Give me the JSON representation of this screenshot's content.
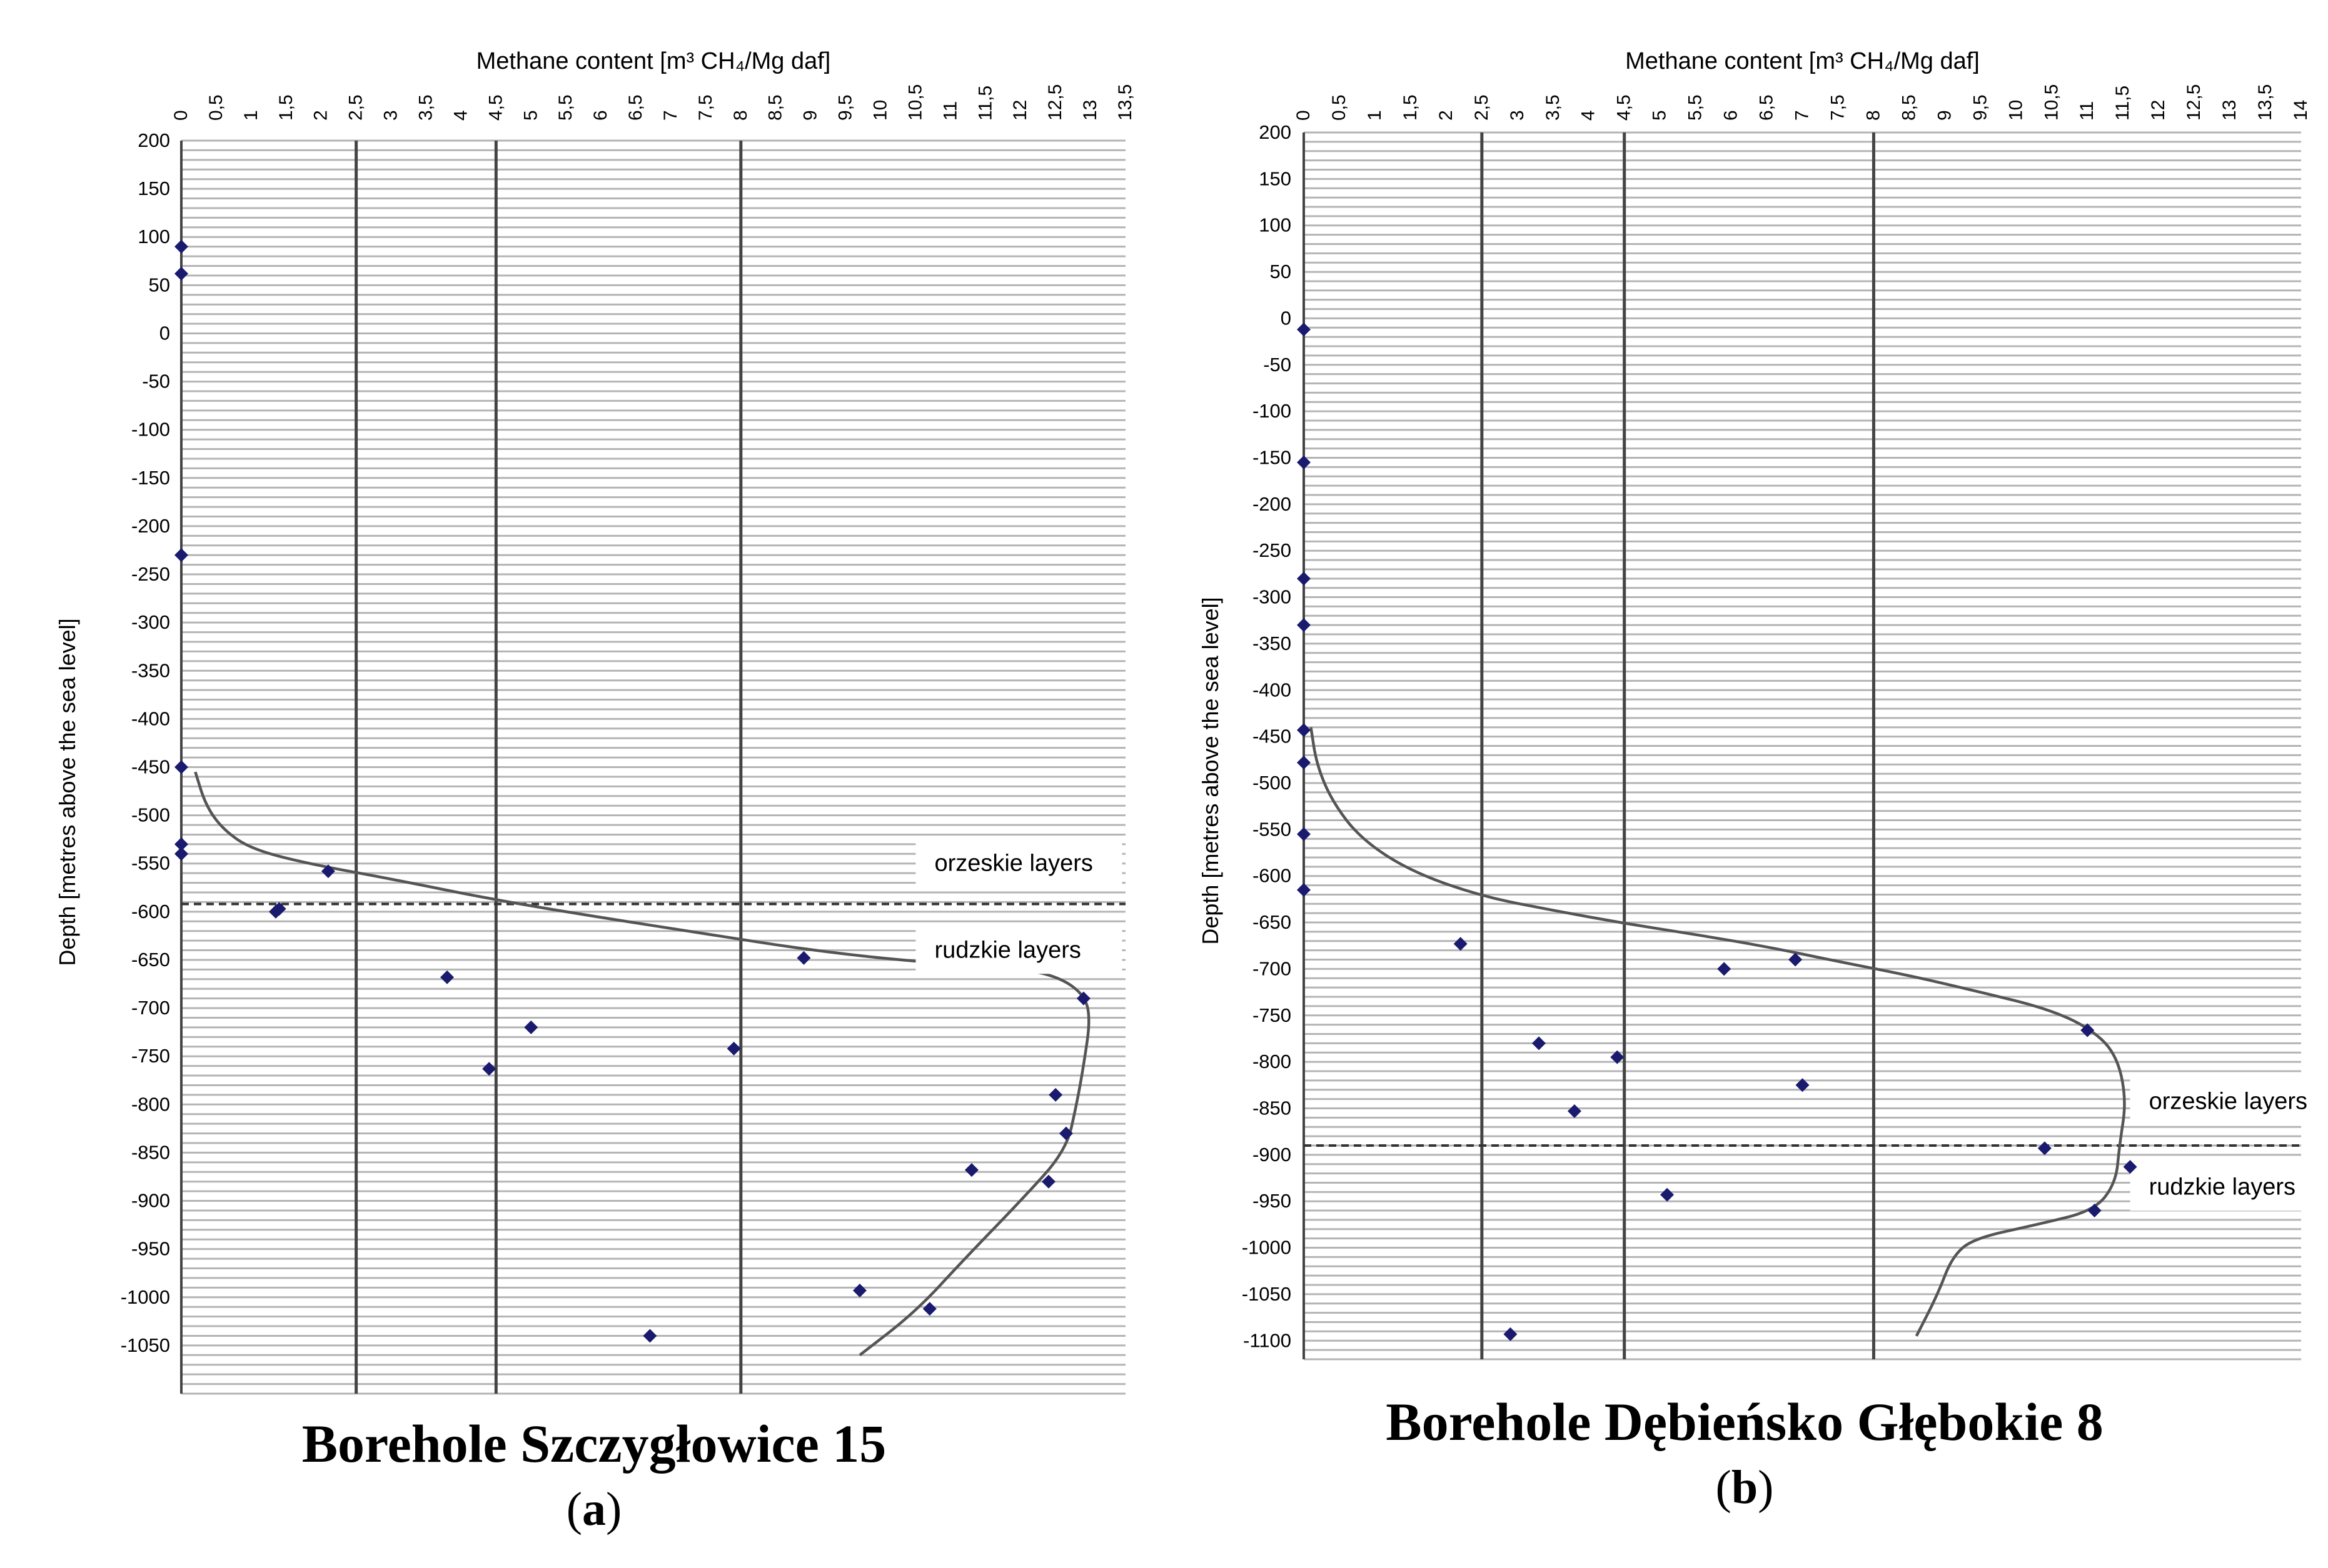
{
  "figure": {
    "panel_a": {
      "name": "Borehole Szczygłowice 15",
      "label": "a"
    },
    "panel_b": {
      "name": "Borehole Dębieńsko Głębokie 8",
      "label": "b"
    }
  },
  "colors": {
    "points": "#1a1a6e",
    "curve": "#555555",
    "grid": "#b4b4b4",
    "vline": "#444444",
    "text": "#000000"
  },
  "chart_data": [
    {
      "type": "scatter",
      "panel": "a",
      "title": "Borehole Szczygłowice 15",
      "xlabel": "Methane content [m³ CH₄/Mg daf]",
      "ylabel": "Depth [metres above the sea level]",
      "xlim": [
        0,
        13.5
      ],
      "ylim": [
        -1100,
        200
      ],
      "x_ticks": [
        "0",
        "0,5",
        "1",
        "1,5",
        "2",
        "2,5",
        "3",
        "3,5",
        "4",
        "4,5",
        "5",
        "5,5",
        "6",
        "6,5",
        "7",
        "7,5",
        "8",
        "8,5",
        "9",
        "9,5",
        "10",
        "10,5",
        "11",
        "11,5",
        "12",
        "12,5",
        "13",
        "13,5"
      ],
      "y_ticks": [
        "200",
        "150",
        "100",
        "50",
        "0",
        "-50",
        "-100",
        "-150",
        "-200",
        "-250",
        "-300",
        "-350",
        "-400",
        "-450",
        "-500",
        "-550",
        "-600",
        "-650",
        "-700",
        "-750",
        "-800",
        "-850",
        "-900",
        "-950",
        "-1000",
        "-1050"
      ],
      "reference_lines_x": [
        2.5,
        4.5,
        8
      ],
      "boundary_depth": -592,
      "annotations": [
        {
          "text": "orzeskie layers",
          "x": 10.5,
          "y": -555
        },
        {
          "text": "rudzkie layers",
          "x": 10.5,
          "y": -645
        }
      ],
      "points": [
        [
          0,
          90
        ],
        [
          0,
          62
        ],
        [
          0,
          -230
        ],
        [
          0,
          -450
        ],
        [
          0,
          -530
        ],
        [
          0,
          -540
        ],
        [
          2.1,
          -558
        ],
        [
          1.35,
          -600
        ],
        [
          1.4,
          -597
        ],
        [
          8.9,
          -648
        ],
        [
          3.8,
          -668
        ],
        [
          5.0,
          -720
        ],
        [
          4.4,
          -763
        ],
        [
          7.9,
          -742
        ],
        [
          12.9,
          -690
        ],
        [
          12.5,
          -790
        ],
        [
          12.65,
          -830
        ],
        [
          11.3,
          -868
        ],
        [
          12.4,
          -880
        ],
        [
          9.7,
          -993
        ],
        [
          10.7,
          -1012
        ],
        [
          6.7,
          -1040
        ]
      ],
      "trend_curve": [
        [
          0.2,
          -455
        ],
        [
          0.35,
          -490
        ],
        [
          0.6,
          -515
        ],
        [
          1.0,
          -535
        ],
        [
          1.8,
          -550
        ],
        [
          3.0,
          -566
        ],
        [
          4.5,
          -588
        ],
        [
          6.0,
          -606
        ],
        [
          7.5,
          -623
        ],
        [
          9.0,
          -640
        ],
        [
          10.5,
          -652
        ],
        [
          11.8,
          -657
        ],
        [
          12.5,
          -666
        ],
        [
          12.9,
          -685
        ],
        [
          13.0,
          -710
        ],
        [
          12.9,
          -760
        ],
        [
          12.8,
          -800
        ],
        [
          12.65,
          -848
        ],
        [
          12.0,
          -900
        ],
        [
          11.2,
          -960
        ],
        [
          10.5,
          -1015
        ],
        [
          9.7,
          -1060
        ]
      ]
    },
    {
      "type": "scatter",
      "panel": "b",
      "title": "Borehole Dębieńsko Głębokie 8",
      "xlabel": "Methane content [m³ CH₄/Mg daf]",
      "ylabel": "Depth [metres above the sea level]",
      "xlim": [
        0,
        14
      ],
      "ylim": [
        -1120,
        200
      ],
      "x_ticks": [
        "0",
        "0,5",
        "1",
        "1,5",
        "2",
        "2,5",
        "3",
        "3,5",
        "4",
        "4,5",
        "5",
        "5,5",
        "6",
        "6,5",
        "7",
        "7,5",
        "8",
        "8,5",
        "9",
        "9,5",
        "10",
        "10,5",
        "11",
        "11,5",
        "12",
        "12,5",
        "13",
        "13,5",
        "14"
      ],
      "y_ticks": [
        "200",
        "150",
        "100",
        "50",
        "0",
        "-50",
        "-100",
        "-150",
        "-200",
        "-250",
        "-300",
        "-350",
        "-400",
        "-450",
        "-500",
        "-550",
        "-600",
        "-650",
        "-700",
        "-750",
        "-800",
        "-850",
        "-900",
        "-950",
        "-1000",
        "-1050",
        "-1100"
      ],
      "reference_lines_x": [
        2.5,
        4.5,
        8
      ],
      "boundary_depth": -890,
      "annotations": [
        {
          "text": "orzeskie layers",
          "x": 11.6,
          "y": -848
        },
        {
          "text": "rudzkie layers",
          "x": 11.6,
          "y": -940
        }
      ],
      "points": [
        [
          0,
          -12
        ],
        [
          0,
          -155
        ],
        [
          0,
          -280
        ],
        [
          0,
          -330
        ],
        [
          0,
          -443
        ],
        [
          0,
          -478
        ],
        [
          0,
          -555
        ],
        [
          0,
          -615
        ],
        [
          2.2,
          -673
        ],
        [
          5.9,
          -700
        ],
        [
          6.9,
          -690
        ],
        [
          3.3,
          -780
        ],
        [
          4.4,
          -795
        ],
        [
          3.8,
          -853
        ],
        [
          7.0,
          -825
        ],
        [
          11.0,
          -766
        ],
        [
          10.4,
          -893
        ],
        [
          11.6,
          -913
        ],
        [
          5.1,
          -943
        ],
        [
          11.1,
          -960
        ],
        [
          2.9,
          -1093
        ]
      ],
      "trend_curve": [
        [
          0.1,
          -440
        ],
        [
          0.18,
          -480
        ],
        [
          0.4,
          -520
        ],
        [
          0.8,
          -560
        ],
        [
          1.5,
          -595
        ],
        [
          2.5,
          -622
        ],
        [
          3.5,
          -637
        ],
        [
          4.5,
          -651
        ],
        [
          5.5,
          -663
        ],
        [
          6.5,
          -676
        ],
        [
          7.5,
          -692
        ],
        [
          8.5,
          -707
        ],
        [
          9.5,
          -725
        ],
        [
          10.4,
          -742
        ],
        [
          11.0,
          -762
        ],
        [
          11.4,
          -790
        ],
        [
          11.55,
          -840
        ],
        [
          11.45,
          -890
        ],
        [
          11.4,
          -930
        ],
        [
          11.1,
          -960
        ],
        [
          10.3,
          -975
        ],
        [
          9.4,
          -990
        ],
        [
          9.1,
          -1010
        ],
        [
          8.9,
          -1050
        ],
        [
          8.6,
          -1095
        ]
      ]
    }
  ]
}
